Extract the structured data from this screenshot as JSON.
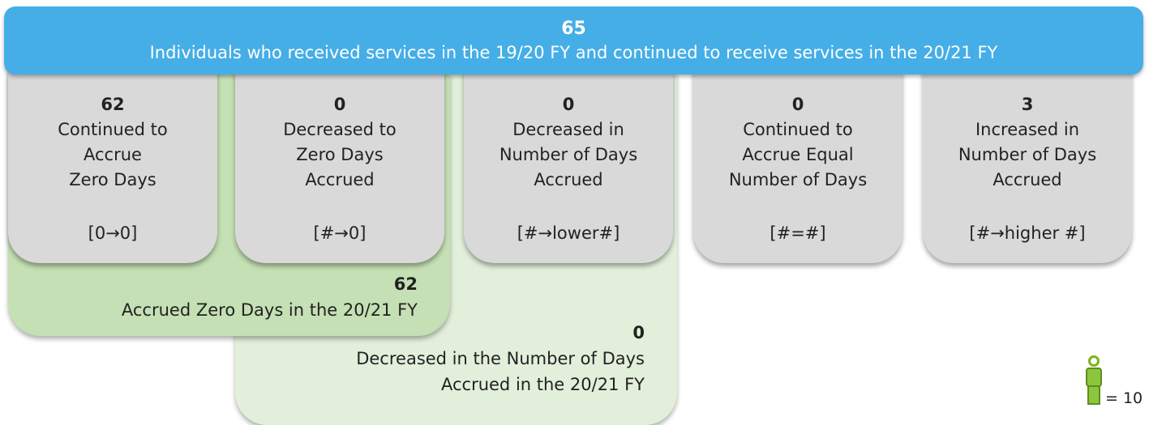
{
  "header": {
    "value": "65",
    "label": "Individuals who received services in the 19/20 FY and continued to receive services in the 20/21 FY"
  },
  "boxes": [
    {
      "value": "62",
      "lines": [
        "Continued to",
        "Accrue",
        "Zero Days"
      ],
      "notation": "[0→0]"
    },
    {
      "value": "0",
      "lines": [
        "Decreased to",
        "Zero Days",
        "Accrued"
      ],
      "notation": "[#→0]"
    },
    {
      "value": "0",
      "lines": [
        "Decreased in",
        "Number of Days",
        "Accrued"
      ],
      "notation": "[#→lower#]"
    },
    {
      "value": "0",
      "lines": [
        "Continued to",
        "Accrue Equal",
        "Number of Days"
      ],
      "notation": "[#=#]"
    },
    {
      "value": "3",
      "lines": [
        "Increased in",
        "Number of Days",
        "Accrued"
      ],
      "notation": "[#→higher #]"
    }
  ],
  "groups": [
    {
      "value": "62",
      "lines": [
        "Accrued Zero Days in the 20/21 FY"
      ]
    },
    {
      "value": "0",
      "lines": [
        "Decreased in the Number of Days",
        "Accrued in the 20/21 FY"
      ]
    }
  ],
  "legend": {
    "label": "= 10"
  }
}
